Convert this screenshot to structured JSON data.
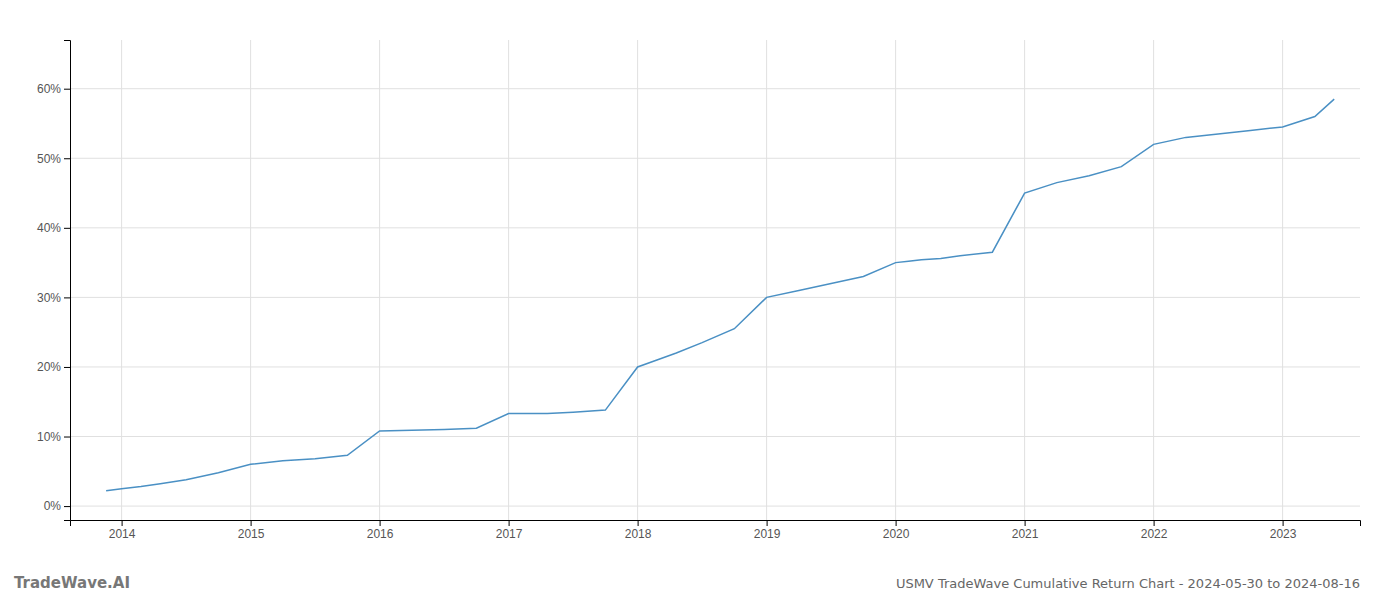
{
  "chart_data": {
    "type": "line",
    "title": "USMV TradeWave Cumulative Return Chart - 2024-05-30 to 2024-08-16",
    "annotations": [
      "TradeWave.AI"
    ],
    "color": "#4a90c4",
    "grid": true,
    "xlim": [
      2013.6,
      2023.6
    ],
    "ylim": [
      -0.02,
      0.67
    ],
    "xticks": [
      2014,
      2015,
      2016,
      2017,
      2018,
      2019,
      2020,
      2021,
      2022,
      2023
    ],
    "yticks": [
      {
        "value": 0.0,
        "label": "0%"
      },
      {
        "value": 0.1,
        "label": "10%"
      },
      {
        "value": 0.2,
        "label": "20%"
      },
      {
        "value": 0.3,
        "label": "30%"
      },
      {
        "value": 0.4,
        "label": "40%"
      },
      {
        "value": 0.5,
        "label": "50%"
      },
      {
        "value": 0.6,
        "label": "60%"
      }
    ],
    "x": [
      2013.88,
      2014.0,
      2014.15,
      2014.3,
      2014.5,
      2014.75,
      2015.0,
      2015.25,
      2015.5,
      2015.75,
      2016.0,
      2016.25,
      2016.5,
      2016.75,
      2017.0,
      2017.15,
      2017.3,
      2017.5,
      2017.75,
      2018.0,
      2018.15,
      2018.3,
      2018.5,
      2018.75,
      2019.0,
      2019.25,
      2019.5,
      2019.75,
      2020.0,
      2020.1,
      2020.2,
      2020.35,
      2020.5,
      2020.75,
      2021.0,
      2021.25,
      2021.5,
      2021.75,
      2022.0,
      2022.25,
      2022.5,
      2022.75,
      2023.0,
      2023.25,
      2023.4
    ],
    "values": [
      0.022,
      0.025,
      0.028,
      0.032,
      0.038,
      0.048,
      0.06,
      0.065,
      0.068,
      0.073,
      0.108,
      0.109,
      0.11,
      0.112,
      0.133,
      0.133,
      0.133,
      0.135,
      0.138,
      0.2,
      0.21,
      0.22,
      0.235,
      0.255,
      0.3,
      0.31,
      0.32,
      0.33,
      0.35,
      0.352,
      0.354,
      0.356,
      0.36,
      0.365,
      0.45,
      0.465,
      0.475,
      0.488,
      0.52,
      0.53,
      0.535,
      0.54,
      0.545,
      0.56,
      0.585
    ]
  }
}
